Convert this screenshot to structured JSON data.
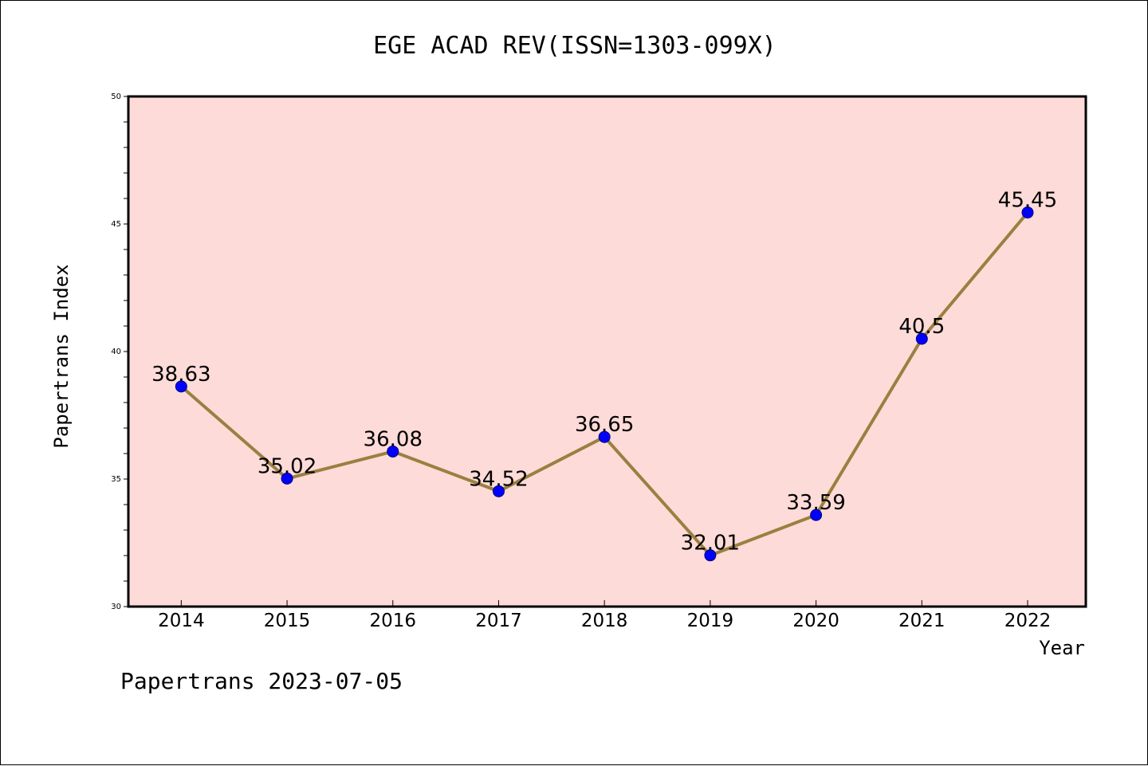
{
  "chart_data": {
    "type": "line",
    "title": "EGE ACAD REV(ISSN=1303-099X)",
    "xlabel": "Year",
    "ylabel": "Papertrans Index",
    "categories": [
      "2014",
      "2015",
      "2016",
      "2017",
      "2018",
      "2019",
      "2020",
      "2021",
      "2022"
    ],
    "series": [
      {
        "values": [
          38.63,
          35.02,
          36.08,
          34.52,
          36.65,
          32.01,
          33.59,
          40.5,
          45.45
        ],
        "labels": [
          "38.63",
          "35.02",
          "36.08",
          "34.52",
          "36.65",
          "32.01",
          "33.59",
          "40.5",
          "45.45"
        ]
      }
    ],
    "ylim": [
      30,
      50
    ],
    "yticks": [
      "30",
      "35",
      "40",
      "45",
      "50"
    ],
    "y_minor_step": 1,
    "grid": false,
    "legend": "none",
    "colors": {
      "plot_background": "#fddbd8",
      "line": "#9a8040",
      "marker": "#0000ff",
      "marker_edge": "#000080"
    }
  },
  "footer": "Papertrans 2023-07-05"
}
